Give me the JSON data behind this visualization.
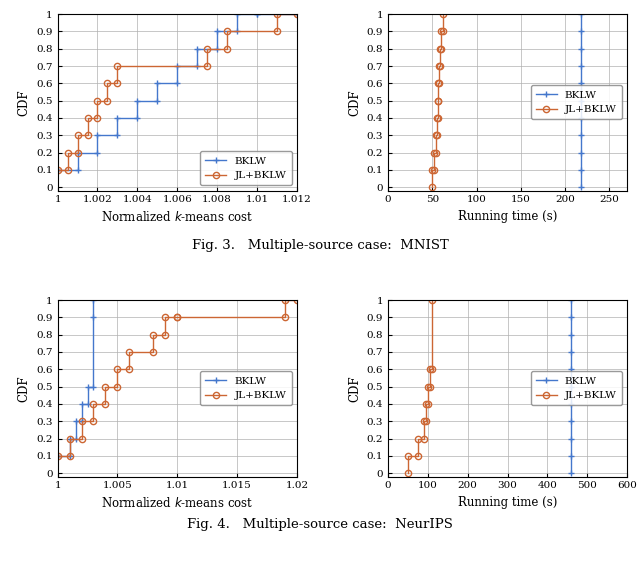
{
  "fig3_cost_bklw_x": [
    1.0,
    1.001,
    1.001,
    1.002,
    1.002,
    1.003,
    1.003,
    1.004,
    1.004,
    1.005,
    1.005,
    1.006,
    1.006,
    1.007,
    1.007,
    1.008,
    1.008,
    1.009,
    1.009,
    1.01,
    1.01,
    1.012
  ],
  "fig3_cost_bklw_y": [
    0.1,
    0.1,
    0.2,
    0.2,
    0.3,
    0.3,
    0.4,
    0.4,
    0.5,
    0.5,
    0.6,
    0.6,
    0.7,
    0.7,
    0.8,
    0.8,
    0.9,
    0.9,
    1.0,
    1.0,
    1.0,
    1.0
  ],
  "fig3_cost_jlbklw_x": [
    1.0,
    1.0005,
    1.0005,
    1.001,
    1.001,
    1.0015,
    1.0015,
    1.002,
    1.002,
    1.0025,
    1.0025,
    1.003,
    1.003,
    1.0075,
    1.0075,
    1.0085,
    1.0085,
    1.011,
    1.011,
    1.012
  ],
  "fig3_cost_jlbklw_y": [
    0.1,
    0.1,
    0.2,
    0.2,
    0.3,
    0.3,
    0.4,
    0.4,
    0.5,
    0.5,
    0.6,
    0.6,
    0.7,
    0.7,
    0.8,
    0.8,
    0.9,
    0.9,
    1.0,
    1.0
  ],
  "fig3_cost_xlim": [
    1.0,
    1.012
  ],
  "fig3_cost_xticks": [
    1.0,
    1.002,
    1.004,
    1.006,
    1.008,
    1.01,
    1.012
  ],
  "fig3_cost_xticklabels": [
    "1",
    "1.002",
    "1.004",
    "1.006",
    "1.008",
    "1.01",
    "1.012"
  ],
  "fig3_time_bklw_x": [
    218,
    218,
    218,
    218,
    218,
    218,
    218,
    218,
    218,
    218,
    218
  ],
  "fig3_time_bklw_y": [
    0.0,
    0.1,
    0.2,
    0.3,
    0.4,
    0.5,
    0.6,
    0.7,
    0.8,
    0.9,
    1.0
  ],
  "fig3_time_jlbklw_x": [
    50,
    50,
    52,
    52,
    54,
    54,
    55,
    55,
    56,
    56,
    57,
    57,
    58,
    58,
    59,
    59,
    60,
    60,
    62,
    62
  ],
  "fig3_time_jlbklw_y": [
    0.0,
    0.1,
    0.1,
    0.2,
    0.2,
    0.3,
    0.3,
    0.4,
    0.4,
    0.5,
    0.5,
    0.6,
    0.6,
    0.7,
    0.7,
    0.8,
    0.8,
    0.9,
    0.9,
    1.0
  ],
  "fig3_time_xlim": [
    0,
    270
  ],
  "fig3_time_xticks": [
    0,
    50,
    100,
    150,
    200,
    250
  ],
  "fig4_cost_bklw_x": [
    1.0,
    1.001,
    1.001,
    1.0015,
    1.0015,
    1.002,
    1.002,
    1.0025,
    1.0025,
    1.003,
    1.003,
    1.003
  ],
  "fig4_cost_bklw_y": [
    0.1,
    0.1,
    0.2,
    0.2,
    0.3,
    0.3,
    0.4,
    0.4,
    0.5,
    0.5,
    0.9,
    1.0
  ],
  "fig4_cost_jlbklw_x": [
    1.0,
    1.001,
    1.001,
    1.002,
    1.002,
    1.003,
    1.003,
    1.004,
    1.004,
    1.005,
    1.005,
    1.006,
    1.006,
    1.008,
    1.008,
    1.009,
    1.009,
    1.01,
    1.01,
    1.019,
    1.019,
    1.02
  ],
  "fig4_cost_jlbklw_y": [
    0.1,
    0.1,
    0.2,
    0.2,
    0.3,
    0.3,
    0.4,
    0.4,
    0.5,
    0.5,
    0.6,
    0.6,
    0.7,
    0.7,
    0.8,
    0.8,
    0.9,
    0.9,
    0.9,
    0.9,
    1.0,
    1.0
  ],
  "fig4_cost_xlim": [
    1.0,
    1.02
  ],
  "fig4_cost_xticks": [
    1.0,
    1.005,
    1.01,
    1.015,
    1.02
  ],
  "fig4_cost_xticklabels": [
    "1",
    "1.005",
    "1.01",
    "1.015",
    "1.02"
  ],
  "fig4_time_bklw_x": [
    460,
    460,
    460,
    460,
    460,
    460,
    460,
    460,
    460,
    460,
    460
  ],
  "fig4_time_bklw_y": [
    0.0,
    0.1,
    0.2,
    0.3,
    0.4,
    0.5,
    0.6,
    0.7,
    0.8,
    0.9,
    1.0
  ],
  "fig4_time_jlbklw_x": [
    50,
    50,
    75,
    75,
    90,
    90,
    95,
    95,
    100,
    100,
    105,
    105,
    110,
    110
  ],
  "fig4_time_jlbklw_y": [
    0.0,
    0.1,
    0.1,
    0.2,
    0.2,
    0.3,
    0.3,
    0.4,
    0.4,
    0.5,
    0.5,
    0.6,
    0.6,
    1.0
  ],
  "fig4_time_xlim": [
    0,
    600
  ],
  "fig4_time_xticks": [
    0,
    100,
    200,
    300,
    400,
    500,
    600
  ],
  "ylim": [
    -0.02,
    1.0
  ],
  "yticks": [
    0,
    0.1,
    0.2,
    0.3,
    0.4,
    0.5,
    0.6,
    0.7,
    0.8,
    0.9,
    1.0
  ],
  "yticklabels": [
    "0",
    "0.1",
    "0.2",
    "0.3",
    "0.4",
    "0.5",
    "0.6",
    "0.7",
    "0.8",
    "0.9",
    "1"
  ],
  "color_bklw": "#4477CC",
  "color_jlbklw": "#CC6633",
  "ylabel": "CDF",
  "fig3_caption": "Fig. 3.   Multiple-source case:  MNIST",
  "fig4_caption": "Fig. 4.   Multiple-source case:  NeurIPS",
  "legend_bklw": "BKLW",
  "legend_jlbklw": "JL+BKLW"
}
